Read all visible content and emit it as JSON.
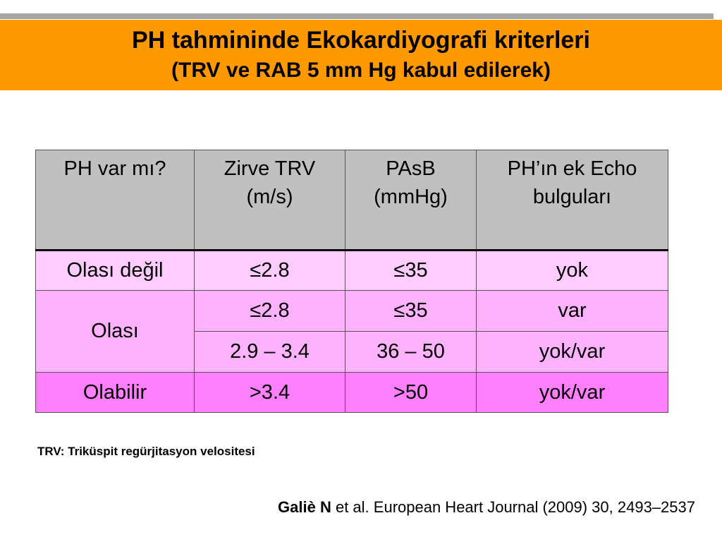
{
  "header": {
    "title": "PH tahmininde Ekokardiyografi kriterleri",
    "subtitle": "(TRV ve  RAB 5 mm Hg kabul edilerek)"
  },
  "table": {
    "headers": {
      "col1": "PH var mı?",
      "col2_line1": "Zirve  TRV",
      "col2_line2": "(m/s)",
      "col3_line1": "PAsB",
      "col3_line2": "(mmHg)",
      "col4_line1": "PH’ın ek  Echo",
      "col4_line2": "bulguları"
    },
    "rows": [
      {
        "category": "Olası değil",
        "trv": "≤2.8",
        "pasb": "≤35",
        "echo": "yok"
      },
      {
        "category": "Olası",
        "trv": "≤2.8",
        "pasb": "≤35",
        "echo": "var"
      },
      {
        "trv": "2.9 – 3.4",
        "pasb": "36 – 50",
        "echo": "yok/var"
      },
      {
        "category": "Olabilir",
        "trv": ">3.4",
        "pasb": ">50",
        "echo": "yok/var"
      }
    ]
  },
  "footnote": "TRV: Triküspit regürjitasyon velositesi",
  "citation": {
    "author": "Galiè N",
    "rest": " et al. European Heart Journal (2009) 30, 2493–2537"
  },
  "colors": {
    "header_band": "#ff9900",
    "table_header": "#c0c0c0",
    "row_light": "#ffccff",
    "row_mid": "#ffb3ff",
    "row_strong": "#ff80ff"
  }
}
